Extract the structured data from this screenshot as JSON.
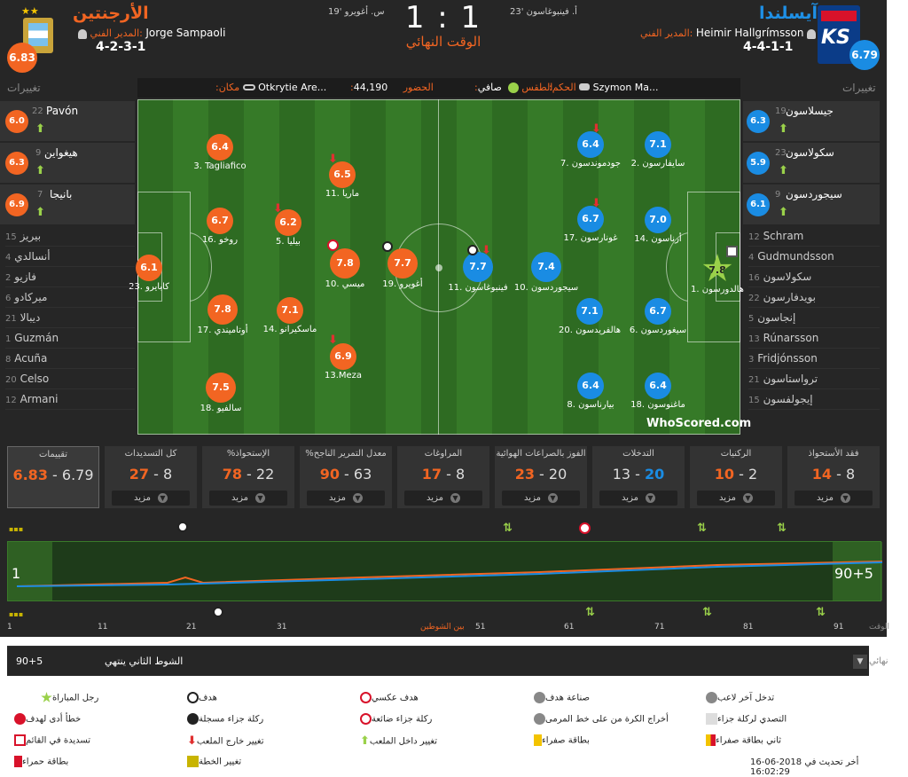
{
  "home": {
    "name": "الأرجنتين",
    "manager_label": "المدير الفني:",
    "manager": "Jorge Sampaoli",
    "formation": "4-2-3-1",
    "rating": "6.83",
    "subs_title": "تغييرات"
  },
  "away": {
    "name": "آيسلندا",
    "manager_label": "المدير الفني:",
    "manager": "Heimir Hallgrímsson",
    "formation": "4-4-1-1",
    "rating": "6.79",
    "subs_title": "تغييرات"
  },
  "match": {
    "score": "1 : 1",
    "status": "الوقت النهائي",
    "home_goal_event": "س. أغويرو '19",
    "away_goal_event": "أ. فينبوغاسون '23"
  },
  "info": {
    "venue_label": ":مكان",
    "venue": "Otkrytie Are...",
    "attendance_label": ":الحضور",
    "attendance": "44,190",
    "weather_label": ":الطقس",
    "weather": "صافي",
    "referee_label": ":الحكم",
    "referee": "Szymon Ma..."
  },
  "home_players": [
    {
      "name": "3. Tagliafico",
      "rating": "6.4"
    },
    {
      "name": "11. ماريا",
      "rating": "6.5"
    },
    {
      "name": "16. روخو",
      "rating": "6.7"
    },
    {
      "name": "5. بيليا",
      "rating": "6.2"
    },
    {
      "name": "23. كابايرو",
      "rating": "6.1"
    },
    {
      "name": "10. ميسي",
      "rating": "7.8"
    },
    {
      "name": "19. أغويرو",
      "rating": "7.7"
    },
    {
      "name": "17. أوتاميندي",
      "rating": "7.8"
    },
    {
      "name": "14. ماسكيرانو",
      "rating": "7.1"
    },
    {
      "name": "13.Meza",
      "rating": "6.9"
    },
    {
      "name": "18. سالفيو",
      "rating": "7.5"
    }
  ],
  "away_players": [
    {
      "name": "7. جودموندسون",
      "rating": "6.4"
    },
    {
      "name": "2. سايفارسون",
      "rating": "7.1"
    },
    {
      "name": "17. غونارسون",
      "rating": "6.7"
    },
    {
      "name": "14. أرناسون",
      "rating": "7.0"
    },
    {
      "name": "11. فينبوغاسون",
      "rating": "7.7"
    },
    {
      "name": "10. سيجوردسون",
      "rating": "7.4"
    },
    {
      "name": "1. هالدورسون",
      "rating": "7.8"
    },
    {
      "name": "20. هالفريدسون",
      "rating": "7.1"
    },
    {
      "name": "6. سيغوردسون",
      "rating": "6.7"
    },
    {
      "name": "8. بيارناسون",
      "rating": "6.4"
    },
    {
      "name": "18. ماغنوسون",
      "rating": "6.4"
    }
  ],
  "home_subs": [
    {
      "num": "22",
      "name": "Pavón",
      "rating": "6.0"
    },
    {
      "num": "9",
      "name": "هيغواين",
      "rating": "6.3"
    },
    {
      "num": "7",
      "name": "بانيجا",
      "rating": "6.9"
    }
  ],
  "away_subs": [
    {
      "num": "19",
      "name": "جيسلاسون",
      "rating": "6.3"
    },
    {
      "num": "23",
      "name": "سكولاسون",
      "rating": "5.9"
    },
    {
      "num": "9",
      "name": "سيجوردسون",
      "rating": "6.1"
    }
  ],
  "home_bench": [
    {
      "num": "15",
      "name": "بيريز"
    },
    {
      "num": "4",
      "name": "أنسالدي"
    },
    {
      "num": "2",
      "name": "فازيو"
    },
    {
      "num": "6",
      "name": "ميركادو"
    },
    {
      "num": "21",
      "name": "ديبالا"
    },
    {
      "num": "1",
      "name": "Guzmán"
    },
    {
      "num": "8",
      "name": "Acuña"
    },
    {
      "num": "20",
      "name": "Celso"
    },
    {
      "num": "12",
      "name": "Armani"
    }
  ],
  "away_bench": [
    {
      "num": "12",
      "name": "Schram"
    },
    {
      "num": "4",
      "name": "Gudmundsson"
    },
    {
      "num": "16",
      "name": "سكولاسون"
    },
    {
      "num": "22",
      "name": "بويدفارسون"
    },
    {
      "num": "5",
      "name": "إنجاسون"
    },
    {
      "num": "13",
      "name": "Rúnarsson"
    },
    {
      "num": "3",
      "name": "Fridjónsson"
    },
    {
      "num": "21",
      "name": "ترواستاسون"
    },
    {
      "num": "15",
      "name": "إيجولفسون"
    }
  ],
  "stats": [
    {
      "title": "تقييمات",
      "home": "6.83",
      "away": "6.79",
      "more": ""
    },
    {
      "title": "كل التسديدات",
      "home": "27",
      "away": "8",
      "more": "مزيد"
    },
    {
      "title": "%الإستحواذ",
      "home": "78",
      "away": "22",
      "more": "مزيد"
    },
    {
      "title": "%معدل التمرير الناجح",
      "home": "90",
      "away": "63",
      "more": "مزيد"
    },
    {
      "title": "المراوغات",
      "home": "17",
      "away": "8",
      "more": "مزيد"
    },
    {
      "title": "الفوز بالصراعات الهوائية",
      "home": "23",
      "away": "20",
      "more": "مزيد"
    },
    {
      "title": "التدخلات",
      "home": "13",
      "away": "20",
      "more": "مزيد"
    },
    {
      "title": "الركنيات",
      "home": "10",
      "away": "2",
      "more": "مزيد"
    },
    {
      "title": "فقد الأستحواذ",
      "home": "14",
      "away": "8",
      "more": "مزيد"
    }
  ],
  "timeline": {
    "start_label": "1",
    "end_label": "90+5",
    "ticks": [
      "1",
      "11",
      "21",
      "31",
      "بين الشوطين",
      "51",
      "61",
      "71",
      "81",
      "91"
    ],
    "time_label": "الوقت",
    "period_time": "90+5",
    "period_text": "الشوط الثاني ينتهي",
    "period_select_label": "نهائي"
  },
  "legend": [
    [
      "رجل المباراة",
      "هدف",
      "هدف عكسي",
      "صناعة هدف",
      "تدخل آخر لاعب"
    ],
    [
      "خطأ أدى لهدف",
      "ركلة جزاء مسجلة",
      "ركلة جزاء ضائعة",
      "أخراج الكرة من على خط المرمى",
      "التصدي لركلة جزاء"
    ],
    [
      "تسديدة في القائم",
      "تغيير خارج الملعب",
      "تغيير داخل الملعب",
      "بطاقة صفراء",
      "ثاني بطاقة صفراء"
    ],
    [
      "بطاقة حمراء",
      "تغيير الخطة"
    ]
  ],
  "last_updated": "أخر تحديث في 2018-06-16 16:02:29",
  "brand": "WhoScored.com",
  "colors": {
    "home": "#f26522",
    "away": "#1a8ce3",
    "pitch": "#2e6b22"
  }
}
